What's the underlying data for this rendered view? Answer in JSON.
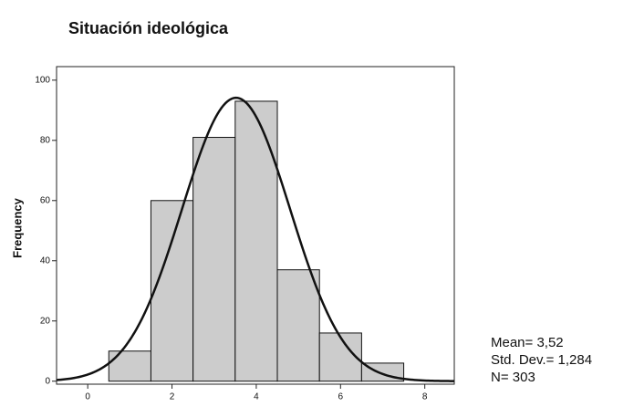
{
  "chart_data": {
    "type": "histogram",
    "title": "Situación ideológica",
    "ylabel": "Frequency",
    "bins": [
      0.5,
      1.5,
      2.5,
      3.5,
      4.5,
      5.5,
      6.5,
      7.5
    ],
    "values": [
      10,
      60,
      81,
      93,
      37,
      16,
      6
    ],
    "color": "#cccccc",
    "xlim": [
      -0.74,
      8.7
    ],
    "xticks": [
      0,
      2,
      4,
      6,
      8
    ],
    "ylim": [
      -1,
      104.5
    ],
    "yticks": [
      0,
      20,
      40,
      60,
      80,
      100
    ],
    "stats": [
      {
        "value": 3.52,
        "label": "Mean= 3,52"
      },
      {
        "value": 1.284,
        "label": "Std. Dev.= 1,284"
      },
      {
        "value": 303,
        "label": "N= 303"
      }
    ]
  }
}
